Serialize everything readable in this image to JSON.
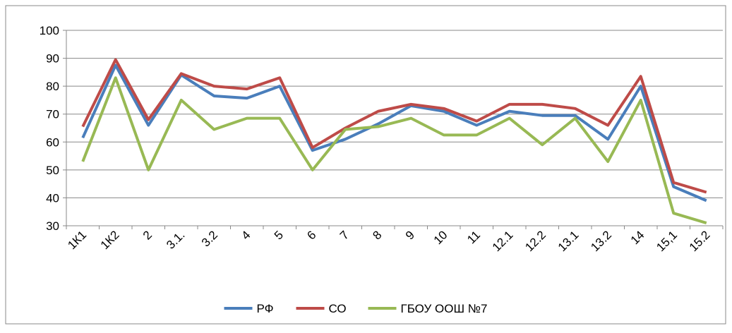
{
  "chart_data": {
    "type": "line",
    "categories": [
      "1К1",
      "1К2",
      "2",
      "3.1.",
      "3.2",
      "4",
      "5",
      "6",
      "7",
      "8",
      "9",
      "10",
      "11",
      "12.1",
      "12.2",
      "13.1",
      "13.2",
      "14",
      "15,1",
      "15.2"
    ],
    "series": [
      {
        "name": "РФ",
        "color": "#4a7ebb",
        "values": [
          61.5,
          87.5,
          66,
          84,
          76.5,
          75.7,
          80,
          57,
          61,
          66.5,
          73,
          71,
          66,
          71,
          69.5,
          69.5,
          61,
          80,
          44,
          39
        ]
      },
      {
        "name": "СО",
        "color": "#be4b48",
        "values": [
          65.5,
          89.5,
          68,
          84.5,
          80,
          79,
          83,
          58,
          65,
          71,
          73.5,
          72,
          67.5,
          73.5,
          73.5,
          72,
          66,
          83.5,
          45.5,
          42
        ]
      },
      {
        "name": "ГБОУ ООШ №7",
        "color": "#98b954",
        "values": [
          53,
          83,
          50,
          75,
          64.5,
          68.5,
          68.5,
          50,
          64.5,
          65.5,
          68.5,
          62.5,
          62.5,
          68.5,
          59,
          68.5,
          53,
          75,
          34.5,
          31
        ]
      }
    ],
    "ylim": [
      30,
      100
    ],
    "yticks": [
      30,
      40,
      50,
      60,
      70,
      80,
      90,
      100
    ],
    "grid": true,
    "legend": "bottom"
  }
}
